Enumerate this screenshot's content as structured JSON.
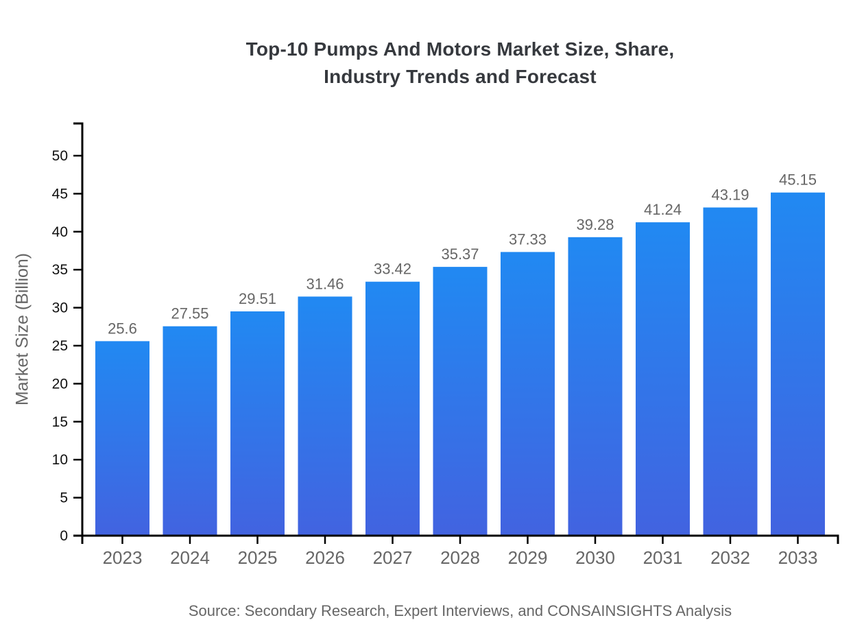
{
  "title": {
    "line1": "Top-10 Pumps And Motors Market Size, Share,",
    "line2": "Industry Trends and Forecast"
  },
  "source": "Source: Secondary Research, Expert Interviews, and CONSAINSIGHTS Analysis",
  "chart_data": {
    "type": "bar",
    "title": "Top-10 Pumps And Motors Market Size, Share, Industry Trends and Forecast",
    "categories": [
      "2023",
      "2024",
      "2025",
      "2026",
      "2027",
      "2028",
      "2029",
      "2030",
      "2031",
      "2032",
      "2033"
    ],
    "values": [
      25.6,
      27.55,
      29.51,
      31.46,
      33.42,
      35.37,
      37.33,
      39.28,
      41.24,
      43.19,
      45.15
    ],
    "value_labels": [
      "25.6",
      "27.55",
      "29.51",
      "31.46",
      "33.42",
      "35.37",
      "37.33",
      "39.28",
      "41.24",
      "43.19",
      "45.15"
    ],
    "xlabel": "",
    "ylabel": "Market Size (Billion)",
    "ylim": [
      0,
      50
    ],
    "ytick_step": 5,
    "yticks": [
      0,
      5,
      10,
      15,
      20,
      25,
      30,
      35,
      40,
      45,
      50
    ],
    "grid": false,
    "legend": null,
    "colors": {
      "bar_gradient_top": "#2189F2",
      "bar_gradient_bottom": "#4263E0",
      "axis": "#000000",
      "y_tick_label": "#111111",
      "x_tick_label": "#666666",
      "value_label": "#666666",
      "title": "#36393e",
      "source": "#666666"
    }
  }
}
